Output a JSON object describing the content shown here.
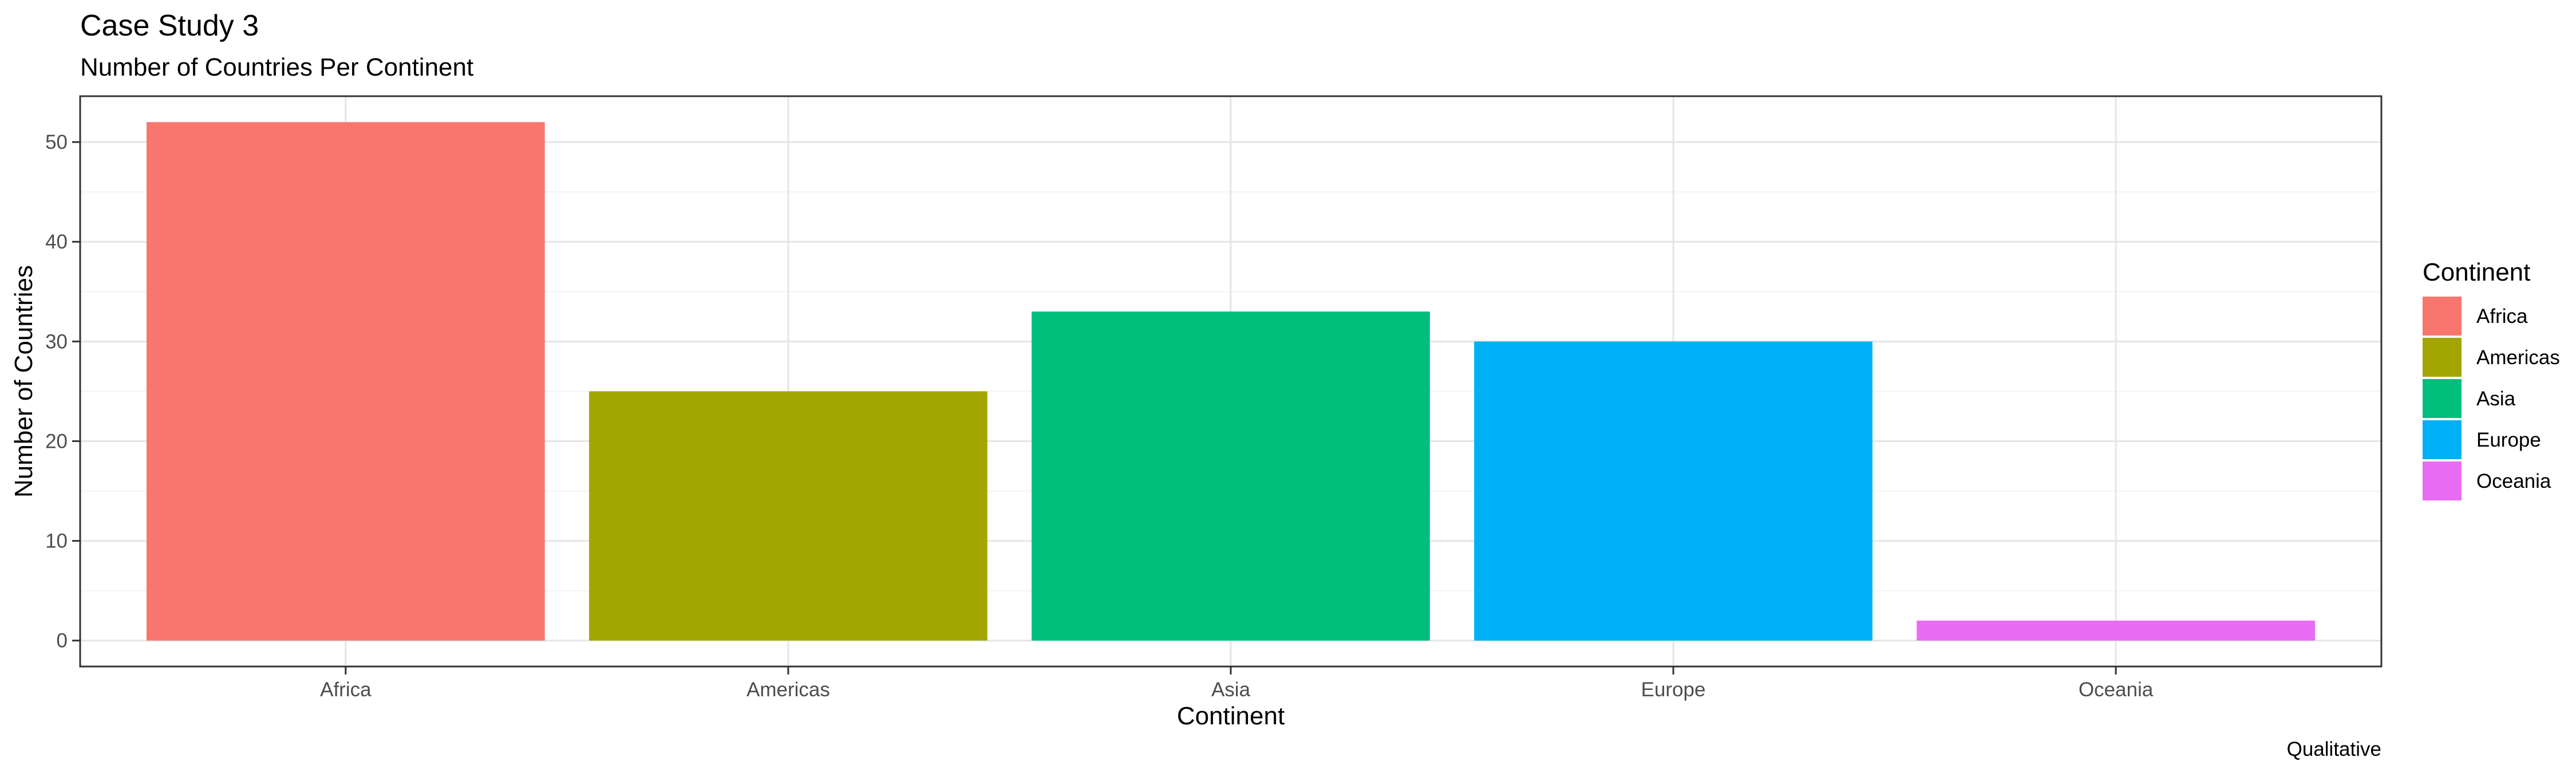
{
  "chart_data": {
    "type": "bar",
    "title": "Case Study 3",
    "subtitle": "Number of Countries Per Continent",
    "xlabel": "Continent",
    "ylabel": "Number of Countries",
    "caption": "Qualitative",
    "categories": [
      "Africa",
      "Americas",
      "Asia",
      "Europe",
      "Oceania"
    ],
    "values": [
      52,
      25,
      33,
      30,
      2
    ],
    "colors": [
      "#F8766D",
      "#A3A500",
      "#00BF7D",
      "#00B0F6",
      "#E76BF3"
    ],
    "ylim": [
      -2.6,
      54.6
    ],
    "yticks": [
      0,
      10,
      20,
      30,
      40,
      50
    ],
    "grid": true,
    "legend": {
      "title": "Continent",
      "position": "right",
      "items": [
        "Africa",
        "Americas",
        "Asia",
        "Europe",
        "Oceania"
      ]
    }
  }
}
